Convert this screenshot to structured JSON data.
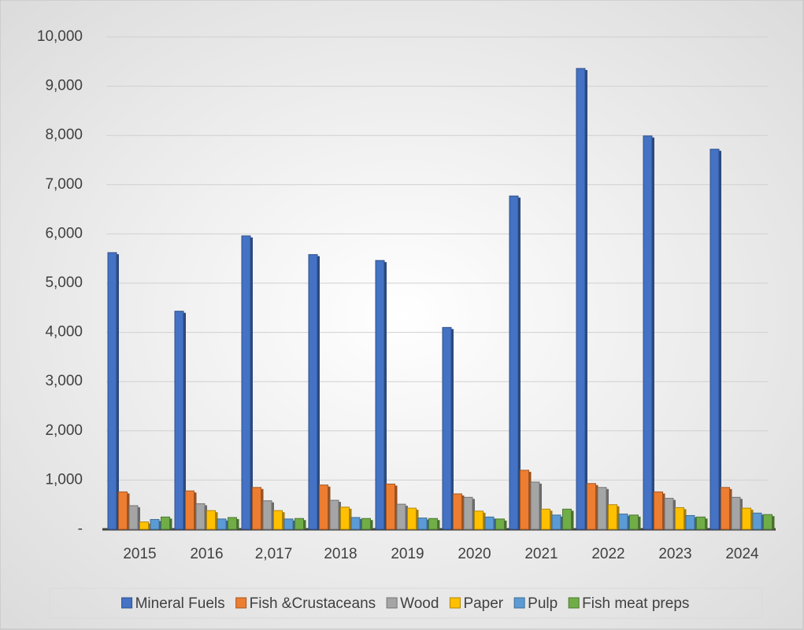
{
  "chart_data": {
    "type": "bar",
    "categories": [
      "2015",
      "2016",
      "2,017",
      "2018",
      "2019",
      "2020",
      "2021",
      "2022",
      "2023",
      "2024"
    ],
    "series": [
      {
        "name": "Mineral Fuels",
        "color": "#4472c4",
        "values": [
          5620,
          4430,
          5960,
          5580,
          5460,
          4100,
          6770,
          9360,
          7990,
          7720
        ]
      },
      {
        "name": "Fish &Crustaceans",
        "color": "#ed7d31",
        "values": [
          760,
          780,
          850,
          900,
          920,
          720,
          1200,
          930,
          760,
          850
        ]
      },
      {
        "name": "Wood",
        "color": "#a5a5a5",
        "values": [
          480,
          520,
          580,
          590,
          510,
          650,
          960,
          850,
          630,
          650
        ]
      },
      {
        "name": "Paper",
        "color": "#ffc000",
        "values": [
          150,
          380,
          380,
          450,
          430,
          370,
          410,
          500,
          440,
          430
        ]
      },
      {
        "name": "Pulp",
        "color": "#5b9bd5",
        "values": [
          200,
          210,
          210,
          240,
          230,
          250,
          290,
          310,
          280,
          330
        ]
      },
      {
        "name": "Fish meat preps",
        "color": "#70ad47",
        "values": [
          250,
          240,
          220,
          220,
          220,
          210,
          410,
          290,
          250,
          300
        ]
      }
    ],
    "ylim": [
      0,
      10000
    ],
    "yticks": [
      {
        "value": 0,
        "label": "-"
      },
      {
        "value": 1000,
        "label": "1,000"
      },
      {
        "value": 2000,
        "label": "2,000"
      },
      {
        "value": 3000,
        "label": "3,000"
      },
      {
        "value": 4000,
        "label": "4,000"
      },
      {
        "value": 5000,
        "label": "5,000"
      },
      {
        "value": 6000,
        "label": "6,000"
      },
      {
        "value": 7000,
        "label": "7,000"
      },
      {
        "value": 8000,
        "label": "8,000"
      },
      {
        "value": 9000,
        "label": "9,000"
      },
      {
        "value": 10000,
        "label": "10,000"
      }
    ],
    "grid": true,
    "legend": "bottom"
  }
}
